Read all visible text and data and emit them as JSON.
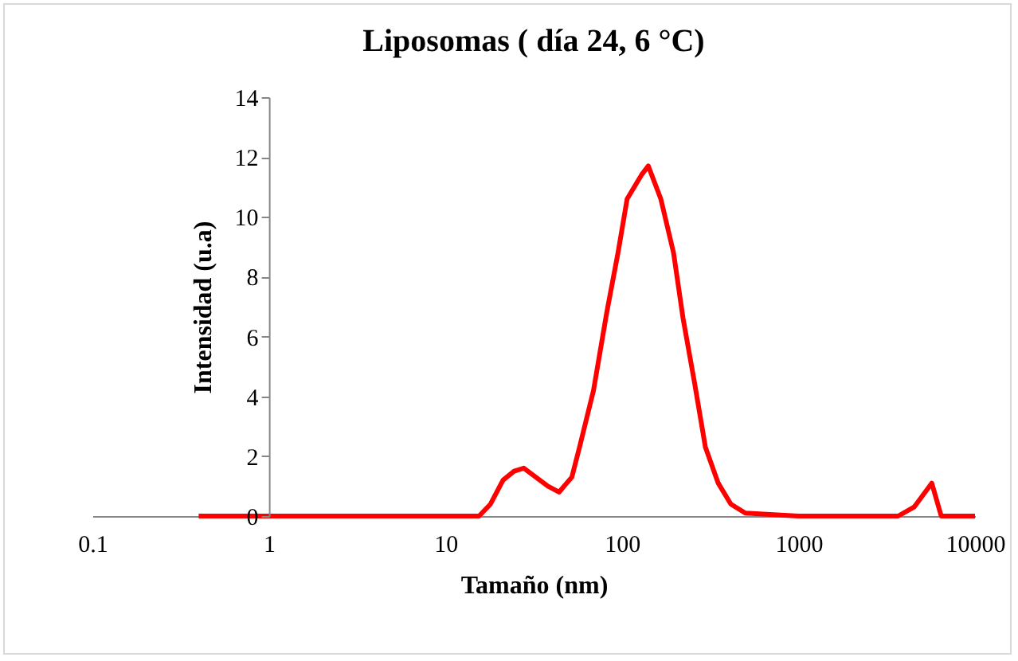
{
  "chart_data": {
    "type": "line",
    "title": "Liposomas ( día 24, 6 °C)",
    "xlabel": "Tamaño (nm)",
    "ylabel": "Intensidad (u.a)",
    "log": "x",
    "x": [
      0.4,
      1,
      5,
      10,
      15.5,
      18,
      21.2,
      24.5,
      27.8,
      38,
      44,
      52,
      57.5,
      69,
      82,
      95,
      107,
      129,
      141,
      166,
      196,
      222,
      257,
      297,
      351,
      414,
      500,
      1000,
      3670,
      4520,
      5690,
      6440,
      10000
    ],
    "series": [
      {
        "color": "#ff0000",
        "values": [
          0,
          0,
          0,
          0,
          0,
          0.4,
          1.2,
          1.5,
          1.6,
          1,
          0.8,
          1.3,
          2.3,
          4.2,
          6.8,
          8.8,
          10.6,
          11.4,
          11.7,
          10.6,
          8.8,
          6.6,
          4.5,
          2.3,
          1.1,
          0.4,
          0.1,
          0,
          0,
          0.3,
          1.1,
          0,
          0
        ]
      }
    ],
    "xlim": [
      0.1,
      10000
    ],
    "xticks": [
      0.1,
      1,
      10,
      100,
      1000,
      10000
    ],
    "ylim": [
      0,
      14
    ],
    "yticks": [
      0,
      2,
      4,
      6,
      8,
      10,
      12,
      14
    ],
    "grid": false,
    "legend": false,
    "marker": "none",
    "line_style": "solid"
  }
}
